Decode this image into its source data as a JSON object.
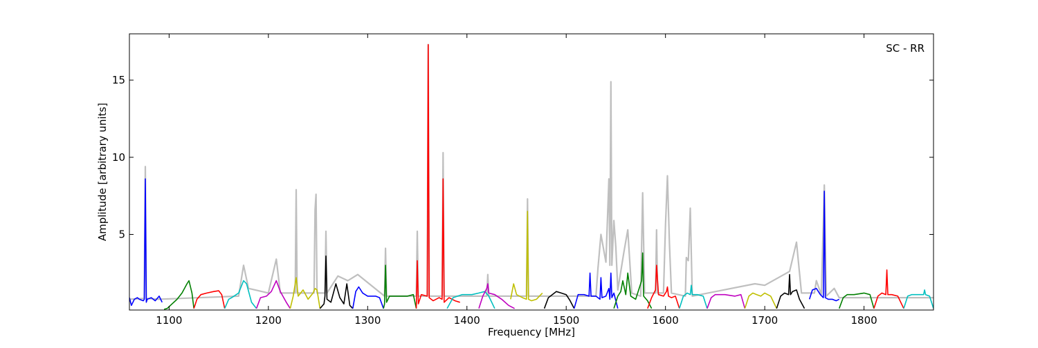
{
  "chart_data": {
    "type": "line",
    "title": "",
    "xlabel": "Frequency [MHz]",
    "ylabel": "Amplitude [arbitrary units]",
    "annotation": "SC - RR",
    "annotation_position": "top-right",
    "xlim": [
      1060,
      1870
    ],
    "ylim": [
      0.1,
      18
    ],
    "xticks": [
      1100,
      1200,
      1300,
      1400,
      1500,
      1600,
      1700,
      1800
    ],
    "yticks": [
      5,
      10,
      15
    ],
    "grid": false,
    "legend": "none",
    "background_colors": {
      "envelope": "#bfbfbf"
    },
    "background_envelope": {
      "name": "",
      "color": "#bfbfbf",
      "points": [
        [
          1060,
          0.8
        ],
        [
          1075,
          0.85
        ],
        [
          1076,
          9.4
        ],
        [
          1077,
          0.85
        ],
        [
          1090,
          0.8
        ],
        [
          1170,
          1.0
        ],
        [
          1175,
          3.0
        ],
        [
          1180,
          1.5
        ],
        [
          1200,
          1.2
        ],
        [
          1208,
          3.4
        ],
        [
          1212,
          1.2
        ],
        [
          1227,
          1.2
        ],
        [
          1228,
          7.9
        ],
        [
          1229,
          1.2
        ],
        [
          1246,
          1.2
        ],
        [
          1247,
          6.6
        ],
        [
          1248,
          7.6
        ],
        [
          1249,
          1.2
        ],
        [
          1257,
          1.2
        ],
        [
          1258,
          5.2
        ],
        [
          1259,
          1.2
        ],
        [
          1270,
          2.3
        ],
        [
          1280,
          2.0
        ],
        [
          1290,
          2.4
        ],
        [
          1317,
          1.0
        ],
        [
          1318,
          4.1
        ],
        [
          1319,
          1.0
        ],
        [
          1349,
          1.0
        ],
        [
          1350,
          5.2
        ],
        [
          1351,
          1.0
        ],
        [
          1360,
          1.0
        ],
        [
          1361,
          17.3
        ],
        [
          1362,
          1.0
        ],
        [
          1375,
          1.0
        ],
        [
          1376,
          10.3
        ],
        [
          1377,
          1.0
        ],
        [
          1420,
          1.0
        ],
        [
          1421,
          2.4
        ],
        [
          1422,
          1.0
        ],
        [
          1460,
          1.0
        ],
        [
          1461,
          7.3
        ],
        [
          1462,
          1.0
        ],
        [
          1530,
          1.0
        ],
        [
          1532,
          2.8
        ],
        [
          1535,
          5.0
        ],
        [
          1540,
          3.2
        ],
        [
          1543,
          8.6
        ],
        [
          1544,
          3.0
        ],
        [
          1545,
          14.9
        ],
        [
          1546,
          3.0
        ],
        [
          1548,
          5.9
        ],
        [
          1550,
          4.2
        ],
        [
          1552,
          1.4
        ],
        [
          1558,
          3.8
        ],
        [
          1562,
          5.3
        ],
        [
          1566,
          1.2
        ],
        [
          1575,
          1.0
        ],
        [
          1577,
          7.7
        ],
        [
          1579,
          1.2
        ],
        [
          1590,
          1.2
        ],
        [
          1591,
          5.3
        ],
        [
          1592,
          1.2
        ],
        [
          1598,
          1.2
        ],
        [
          1600,
          5.6
        ],
        [
          1602,
          8.8
        ],
        [
          1604,
          4.4
        ],
        [
          1606,
          1.2
        ],
        [
          1620,
          1.0
        ],
        [
          1621,
          3.5
        ],
        [
          1623,
          3.3
        ],
        [
          1625,
          6.7
        ],
        [
          1627,
          1.0
        ],
        [
          1690,
          1.8
        ],
        [
          1700,
          1.7
        ],
        [
          1725,
          2.6
        ],
        [
          1732,
          4.5
        ],
        [
          1737,
          1.2
        ],
        [
          1750,
          1.2
        ],
        [
          1752,
          2.0
        ],
        [
          1757,
          1.1
        ],
        [
          1760,
          8.2
        ],
        [
          1762,
          1.0
        ],
        [
          1770,
          1.5
        ],
        [
          1775,
          0.9
        ],
        [
          1870,
          0.9
        ]
      ]
    },
    "series": [
      {
        "color": "#0000ff",
        "x": [
          1060,
          1062,
          1065,
          1068,
          1070,
          1074,
          1075,
          1076,
          1077,
          1078,
          1082,
          1086,
          1090,
          1093
        ],
        "y": [
          0.9,
          0.4,
          0.8,
          0.9,
          0.8,
          0.7,
          0.8,
          8.6,
          0.6,
          0.8,
          0.9,
          0.7,
          1.0,
          0.6
        ]
      },
      {
        "color": "#007f00",
        "x": [
          1095,
          1098,
          1103,
          1108,
          1113,
          1118,
          1120,
          1123,
          1125
        ],
        "y": [
          0.15,
          0.2,
          0.5,
          0.8,
          1.2,
          1.8,
          2.0,
          1.2,
          0.2
        ]
      },
      {
        "color": "#ff0000",
        "x": [
          1125,
          1128,
          1132,
          1138,
          1145,
          1150,
          1153,
          1156
        ],
        "y": [
          0.2,
          0.8,
          1.1,
          1.2,
          1.3,
          1.35,
          1.1,
          0.2
        ]
      },
      {
        "color": "#00bfbf",
        "x": [
          1156,
          1160,
          1163,
          1170,
          1175,
          1178,
          1183,
          1188
        ],
        "y": [
          0.2,
          0.8,
          0.9,
          1.2,
          2.0,
          1.8,
          0.6,
          0.2
        ]
      },
      {
        "color": "#bf00bf",
        "x": [
          1188,
          1192,
          1198,
          1203,
          1208,
          1212,
          1218,
          1222
        ],
        "y": [
          0.2,
          0.9,
          1.0,
          1.3,
          2.0,
          1.3,
          0.6,
          0.2
        ]
      },
      {
        "color": "#bfbf00",
        "x": [
          1222,
          1225,
          1228,
          1230,
          1235,
          1240,
          1245,
          1247,
          1249,
          1252
        ],
        "y": [
          0.2,
          1.0,
          2.2,
          1.0,
          1.4,
          0.8,
          1.2,
          1.5,
          1.4,
          0.2
        ]
      },
      {
        "color": "#000000",
        "x": [
          1252,
          1256,
          1257,
          1258,
          1259,
          1263,
          1268,
          1272,
          1276,
          1279,
          1282,
          1285
        ],
        "y": [
          0.2,
          0.5,
          1.0,
          3.6,
          0.8,
          0.6,
          1.8,
          0.9,
          0.5,
          1.8,
          0.4,
          0.2
        ]
      },
      {
        "color": "#0000ff",
        "x": [
          1285,
          1288,
          1291,
          1295,
          1300,
          1308,
          1312,
          1316
        ],
        "y": [
          0.2,
          1.3,
          1.6,
          1.2,
          1.0,
          1.0,
          0.9,
          0.2
        ]
      },
      {
        "color": "#007f00",
        "x": [
          1316,
          1317,
          1318,
          1319,
          1322,
          1330,
          1340,
          1346,
          1349
        ],
        "y": [
          0.2,
          0.5,
          3.0,
          0.6,
          1.0,
          1.0,
          1.0,
          1.1,
          0.2
        ]
      },
      {
        "color": "#ff0000",
        "x": [
          1349,
          1350,
          1351,
          1354,
          1360,
          1361,
          1362,
          1366,
          1372,
          1375,
          1376,
          1377,
          1382,
          1388,
          1393
        ],
        "y": [
          0.2,
          3.3,
          0.5,
          1.1,
          1.0,
          17.3,
          0.9,
          0.7,
          0.9,
          0.8,
          8.6,
          0.6,
          0.9,
          0.7,
          0.6
        ]
      },
      {
        "color": "#00bfbf",
        "x": [
          1380,
          1386,
          1395,
          1405,
          1412,
          1418,
          1422,
          1428
        ],
        "y": [
          0.2,
          0.9,
          1.1,
          1.1,
          1.2,
          1.3,
          1.0,
          0.2
        ]
      },
      {
        "color": "#bf00bf",
        "x": [
          1412,
          1416,
          1420,
          1421,
          1422,
          1428,
          1435,
          1442,
          1448
        ],
        "y": [
          0.2,
          1.0,
          1.5,
          1.8,
          1.2,
          1.1,
          0.8,
          0.4,
          0.2
        ]
      },
      {
        "color": "#bfbf00",
        "x": [
          1444,
          1447,
          1450,
          1453,
          1456,
          1460,
          1461,
          1462,
          1465,
          1470,
          1476
        ],
        "y": [
          0.8,
          1.8,
          1.1,
          1.0,
          0.9,
          0.8,
          6.5,
          0.8,
          0.7,
          0.8,
          1.2
        ]
      },
      {
        "color": "#000000",
        "x": [
          1478,
          1482,
          1486,
          1490,
          1495,
          1500,
          1504,
          1508
        ],
        "y": [
          0.2,
          0.9,
          1.1,
          1.3,
          1.2,
          1.1,
          0.7,
          0.2
        ]
      },
      {
        "color": "#0000ff",
        "x": [
          1508,
          1512,
          1518,
          1523,
          1524,
          1525,
          1530,
          1534,
          1535,
          1536,
          1540,
          1543,
          1544,
          1545,
          1546,
          1548,
          1552
        ],
        "y": [
          0.2,
          1.1,
          1.1,
          1.0,
          2.5,
          1.0,
          1.0,
          0.8,
          2.2,
          0.9,
          1.0,
          1.5,
          0.8,
          2.5,
          0.9,
          1.2,
          0.2
        ]
      },
      {
        "color": "#007f00",
        "x": [
          1548,
          1552,
          1555,
          1557,
          1560,
          1562,
          1565,
          1570,
          1576,
          1577,
          1578,
          1582,
          1586
        ],
        "y": [
          0.2,
          1.0,
          1.3,
          2.0,
          1.1,
          2.5,
          1.0,
          0.8,
          2.0,
          3.8,
          1.0,
          0.7,
          0.2
        ]
      },
      {
        "color": "#ff0000",
        "x": [
          1582,
          1586,
          1590,
          1591,
          1593,
          1598,
          1601,
          1602,
          1603,
          1606,
          1610,
          1614
        ],
        "y": [
          0.2,
          0.9,
          1.4,
          3.0,
          1.1,
          1.0,
          1.3,
          1.6,
          1.0,
          0.9,
          1.0,
          0.2
        ]
      },
      {
        "color": "#00bfbf",
        "x": [
          1614,
          1618,
          1622,
          1625,
          1626,
          1627,
          1632,
          1638,
          1642
        ],
        "y": [
          0.2,
          1.0,
          1.2,
          1.1,
          1.7,
          1.1,
          1.1,
          1.0,
          0.2
        ]
      },
      {
        "color": "#bf00bf",
        "x": [
          1642,
          1646,
          1650,
          1660,
          1670,
          1676,
          1680
        ],
        "y": [
          0.2,
          0.9,
          1.1,
          1.1,
          1.0,
          1.1,
          0.2
        ]
      },
      {
        "color": "#bfbf00",
        "x": [
          1680,
          1684,
          1688,
          1692,
          1696,
          1700,
          1706,
          1712
        ],
        "y": [
          0.2,
          1.0,
          1.2,
          1.1,
          1.0,
          1.2,
          1.0,
          0.2
        ]
      },
      {
        "color": "#000000",
        "x": [
          1712,
          1716,
          1720,
          1724,
          1725,
          1726,
          1728,
          1732,
          1735,
          1740
        ],
        "y": [
          0.2,
          1.0,
          1.2,
          1.1,
          2.4,
          1.1,
          1.3,
          1.4,
          0.8,
          0.2
        ]
      },
      {
        "color": "#0000ff",
        "x": [
          1745,
          1748,
          1752,
          1756,
          1759,
          1760,
          1761,
          1764,
          1768,
          1772,
          1775
        ],
        "y": [
          0.8,
          1.4,
          1.5,
          1.1,
          0.9,
          7.8,
          0.9,
          0.8,
          0.8,
          0.7,
          0.8
        ]
      },
      {
        "color": "#007f00",
        "x": [
          1775,
          1779,
          1783,
          1790,
          1800,
          1806,
          1810
        ],
        "y": [
          0.2,
          0.9,
          1.1,
          1.1,
          1.2,
          1.1,
          0.2
        ]
      },
      {
        "color": "#ff0000",
        "x": [
          1810,
          1814,
          1818,
          1822,
          1823,
          1824,
          1828,
          1834,
          1840
        ],
        "y": [
          0.2,
          1.0,
          1.2,
          1.1,
          2.7,
          1.1,
          1.1,
          1.0,
          0.2
        ]
      },
      {
        "color": "#00bfbf",
        "x": [
          1840,
          1844,
          1848,
          1855,
          1860,
          1861,
          1862,
          1866,
          1870
        ],
        "y": [
          0.2,
          1.0,
          1.1,
          1.1,
          1.1,
          1.4,
          1.1,
          1.0,
          0.2
        ]
      }
    ]
  }
}
